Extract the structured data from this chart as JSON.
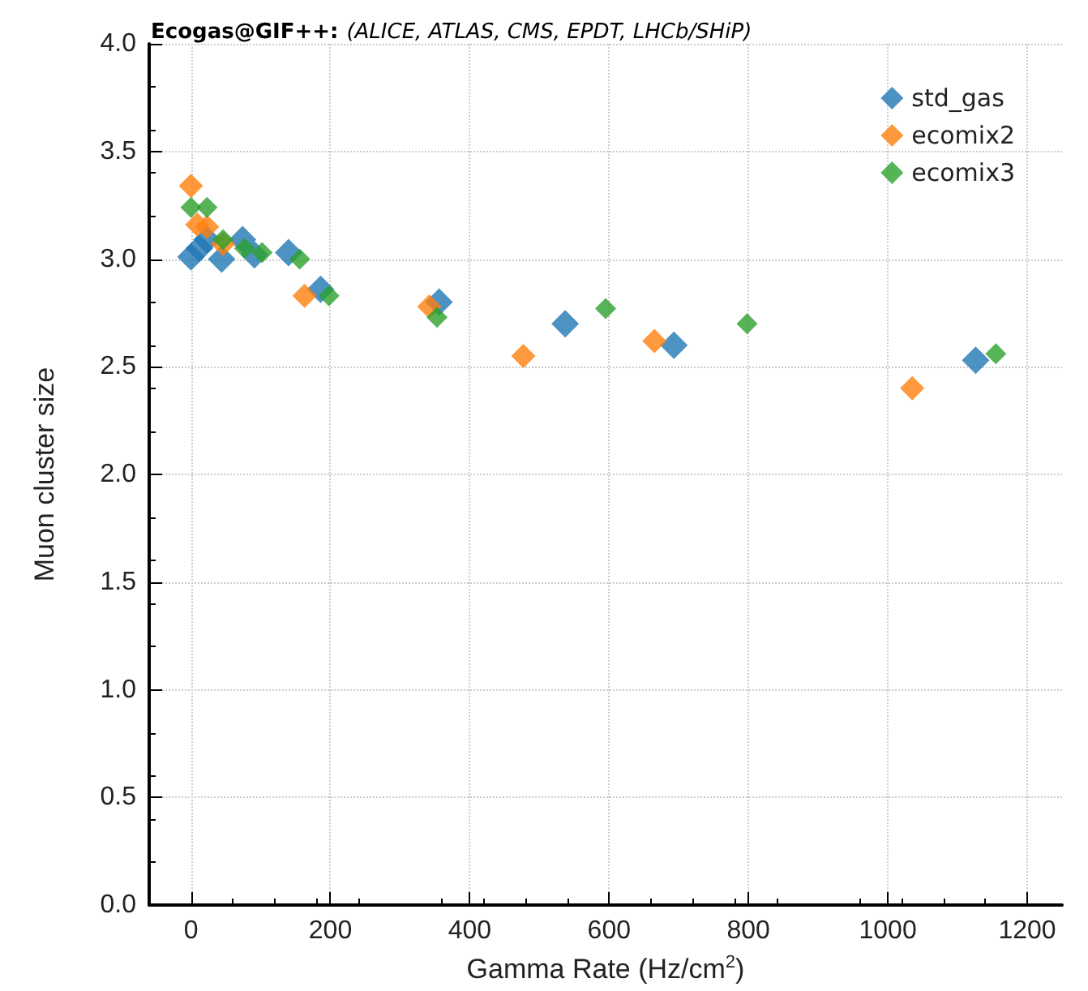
{
  "chart_data": {
    "type": "scatter",
    "title": "Ecogas@GIF++:",
    "subtitle": "(ALICE, ATLAS, CMS, EPDT, LHCb/SHiP)",
    "xlabel": "Gamma Rate (Hz/cm$^{2}$)",
    "ylabel": "Muon cluster size",
    "xlim": [
      -60,
      1250
    ],
    "xticks": [
      0,
      200,
      400,
      600,
      800,
      1000,
      1200
    ],
    "ylim": [
      0,
      4
    ],
    "yticks": [
      {
        "value": 0,
        "label": "0.0"
      },
      {
        "value": 0.5,
        "label": "0.5"
      },
      {
        "value": 1,
        "label": "1.0"
      },
      {
        "value": 1.5,
        "label": "1.5"
      },
      {
        "value": 2,
        "label": "2.0"
      },
      {
        "value": 2.5,
        "label": "2.5"
      },
      {
        "value": 3,
        "label": "3.0"
      },
      {
        "value": 3.5,
        "label": "3.5"
      },
      {
        "value": 4,
        "label": "4.0"
      }
    ],
    "grid": true,
    "legend": "top right",
    "marker": "diamond",
    "series": [
      {
        "name": "std_gas",
        "color": "#1f77b4",
        "x": [
          0,
          12,
          23,
          44,
          74,
          91,
          140,
          186,
          356,
          537,
          693,
          1126
        ],
        "values": [
          3.01,
          3.05,
          3.09,
          3.0,
          3.09,
          3.02,
          3.03,
          2.86,
          2.8,
          2.7,
          2.6,
          2.53
        ]
      },
      {
        "name": "ecomix2",
        "color": "#ff7f0e",
        "x": [
          0,
          9,
          23,
          46,
          163,
          342,
          477,
          665,
          1035
        ],
        "values": [
          3.34,
          3.16,
          3.15,
          3.07,
          2.83,
          2.78,
          2.55,
          2.62,
          2.4
        ]
      },
      {
        "name": "ecomix3",
        "color": "#2ca02c",
        "x": [
          0,
          23,
          46,
          77,
          102,
          156,
          198,
          353,
          595,
          798,
          1155
        ],
        "values": [
          3.24,
          3.24,
          3.09,
          3.05,
          3.03,
          3.0,
          2.83,
          2.73,
          2.77,
          2.7,
          2.56
        ]
      }
    ]
  }
}
